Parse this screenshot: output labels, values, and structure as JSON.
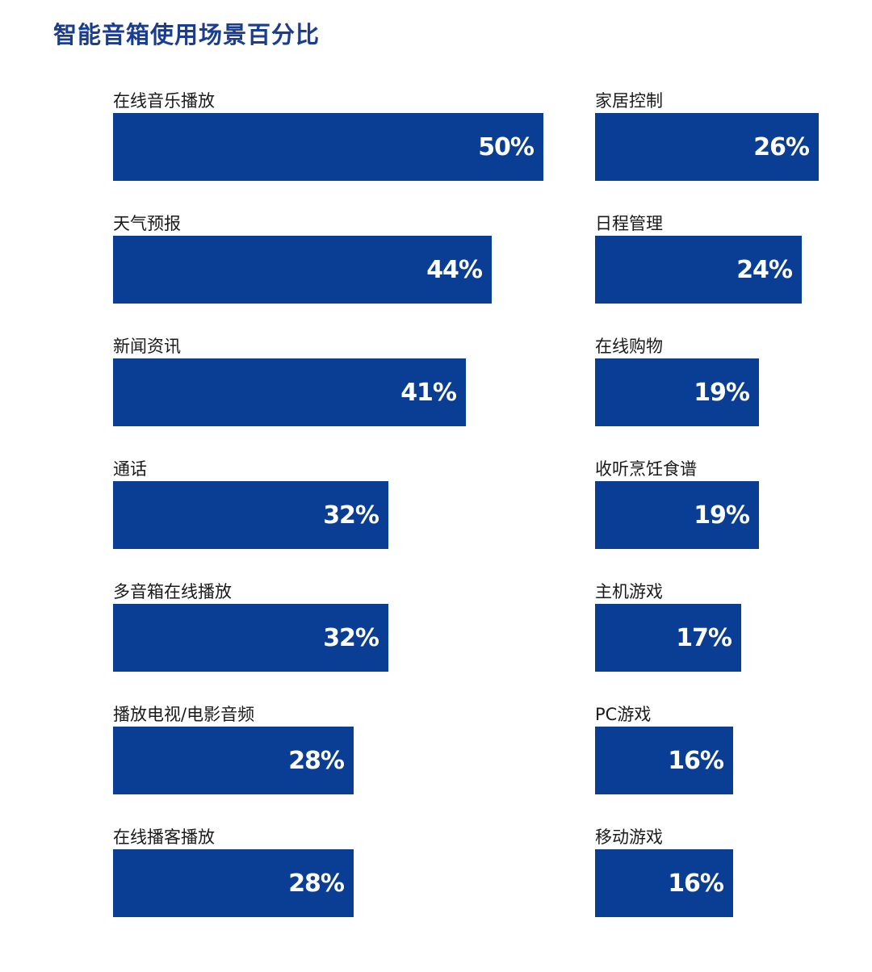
{
  "title": "智能音箱使用场景百分比",
  "chart_data": {
    "type": "bar",
    "orientation": "horizontal",
    "title": "智能音箱使用场景百分比",
    "unit": "%",
    "bar_color": "#0a3d94",
    "panels": [
      {
        "categories": [
          "在线音乐播放",
          "天气预报",
          "新闻资讯",
          "通话",
          "多音箱在线播放",
          "播放电视/电影音频",
          "在线播客播放"
        ],
        "values": [
          50,
          44,
          41,
          32,
          32,
          28,
          28
        ],
        "value_labels": [
          "50%",
          "44%",
          "41%",
          "32%",
          "32%",
          "28%",
          "28%"
        ]
      },
      {
        "categories": [
          "家居控制",
          "日程管理",
          "在线购物",
          "收听烹饪食谱",
          "主机游戏",
          "PC游戏",
          "移动游戏"
        ],
        "values": [
          26,
          24,
          19,
          19,
          17,
          16,
          16
        ],
        "value_labels": [
          "26%",
          "24%",
          "19%",
          "19%",
          "17%",
          "16%",
          "16%"
        ]
      }
    ]
  }
}
